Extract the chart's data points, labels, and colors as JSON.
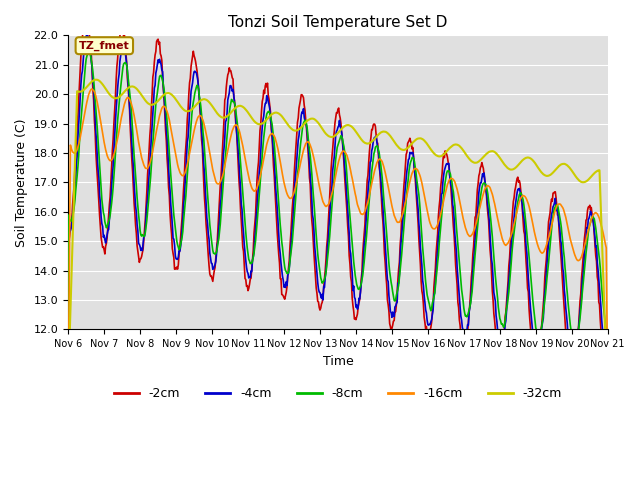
{
  "title": "Tonzi Soil Temperature Set D",
  "xlabel": "Time",
  "ylabel": "Soil Temperature (C)",
  "ylim": [
    12.0,
    22.0
  ],
  "yticks": [
    12.0,
    13.0,
    14.0,
    15.0,
    16.0,
    17.0,
    18.0,
    19.0,
    20.0,
    21.0,
    22.0
  ],
  "bg_color": "#e0e0e0",
  "fig_color": "#ffffff",
  "xtick_labels": [
    "Nov 6",
    "Nov 7",
    "Nov 8",
    "Nov 9",
    "Nov 10",
    "Nov 11",
    "Nov 12",
    "Nov 13",
    "Nov 14",
    "Nov 15",
    "Nov 16",
    "Nov 17",
    "Nov 18",
    "Nov 19",
    "Nov 20",
    "Nov 21"
  ],
  "legend_labels": [
    "-2cm",
    "-4cm",
    "-8cm",
    "-16cm",
    "-32cm"
  ],
  "legend_colors": [
    "#cc0000",
    "#0000cc",
    "#00bb00",
    "#ff8800",
    "#cccc00"
  ],
  "line_widths": [
    1.2,
    1.2,
    1.2,
    1.2,
    1.5
  ],
  "annotation_text": "TZ_fmet",
  "annotation_bg": "#ffffcc",
  "annotation_border": "#aa8800"
}
